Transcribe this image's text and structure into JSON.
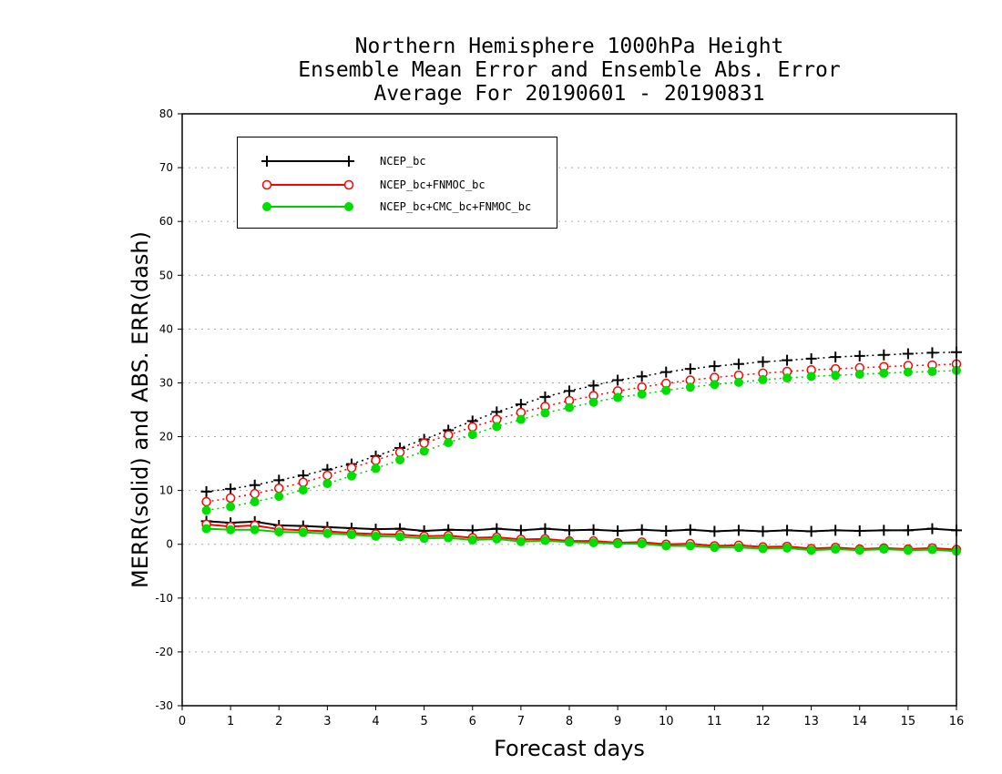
{
  "chart_data": {
    "type": "line",
    "title": [
      "Northern Hemisphere 1000hPa Height",
      "Ensemble Mean Error and Ensemble Abs. Error",
      "Average For 20190601 - 20190831"
    ],
    "xlabel": "Forecast days",
    "ylabel": "MERR(solid) and ABS. ERR(dash)",
    "xlim": [
      0,
      16
    ],
    "ylim": [
      -30,
      80
    ],
    "xticks": [
      "0",
      "1",
      "2",
      "3",
      "4",
      "5",
      "6",
      "7",
      "8",
      "9",
      "10",
      "11",
      "12",
      "13",
      "14",
      "15",
      "16"
    ],
    "yticks": [
      "-30",
      "-20",
      "-10",
      "0",
      "10",
      "20",
      "30",
      "40",
      "50",
      "60",
      "70",
      "80"
    ],
    "grid": "horizontal dotted",
    "legend_position": "top-left",
    "x": [
      0.5,
      1,
      1.5,
      2,
      2.5,
      3,
      3.5,
      4,
      4.5,
      5,
      5.5,
      6,
      6.5,
      7,
      7.5,
      8,
      8.5,
      9,
      9.5,
      10,
      10.5,
      11,
      11.5,
      12,
      12.5,
      13,
      13.5,
      14,
      14.5,
      15,
      15.5,
      16
    ],
    "series": [
      {
        "name": "NCEP_bc",
        "color": "#000000",
        "marker": "plus",
        "merr": [
          4.3,
          4.0,
          4.2,
          3.5,
          3.4,
          3.2,
          3.0,
          2.8,
          2.9,
          2.5,
          2.7,
          2.6,
          2.9,
          2.6,
          2.9,
          2.6,
          2.7,
          2.5,
          2.7,
          2.5,
          2.7,
          2.4,
          2.6,
          2.4,
          2.6,
          2.4,
          2.6,
          2.5,
          2.6,
          2.6,
          2.9,
          2.6
        ],
        "abs_err": [
          9.8,
          10.3,
          11.0,
          11.9,
          12.8,
          13.9,
          14.9,
          16.4,
          17.9,
          19.5,
          21.2,
          22.9,
          24.6,
          26.0,
          27.4,
          28.5,
          29.5,
          30.5,
          31.2,
          32.0,
          32.6,
          33.1,
          33.5,
          33.9,
          34.2,
          34.5,
          34.8,
          35.0,
          35.2,
          35.4,
          35.6,
          35.7
        ]
      },
      {
        "name": "NCEP_bc+FNMOC_bc",
        "color": "#ff0000",
        "marker": "open-circle",
        "merr": [
          3.7,
          3.3,
          3.5,
          2.8,
          2.6,
          2.4,
          2.1,
          1.9,
          1.8,
          1.5,
          1.6,
          1.2,
          1.3,
          0.9,
          1.0,
          0.6,
          0.6,
          0.3,
          0.4,
          0.0,
          0.1,
          -0.3,
          -0.2,
          -0.5,
          -0.4,
          -0.8,
          -0.6,
          -0.9,
          -0.7,
          -0.9,
          -0.7,
          -1.0
        ],
        "abs_err": [
          7.9,
          8.6,
          9.4,
          10.4,
          11.5,
          12.8,
          14.2,
          15.6,
          17.1,
          18.8,
          20.3,
          21.8,
          23.2,
          24.5,
          25.6,
          26.7,
          27.6,
          28.5,
          29.2,
          29.9,
          30.5,
          31.0,
          31.4,
          31.8,
          32.1,
          32.4,
          32.6,
          32.8,
          33.0,
          33.2,
          33.3,
          33.5
        ]
      },
      {
        "name": "NCEP_bc+CMC_bc+FNMOC_bc",
        "color": "#00cc00",
        "marker": "filled-circle",
        "merr": [
          2.9,
          2.7,
          2.7,
          2.3,
          2.2,
          2.0,
          1.8,
          1.5,
          1.4,
          1.1,
          1.2,
          0.8,
          1.0,
          0.5,
          0.7,
          0.4,
          0.3,
          0.1,
          0.1,
          -0.3,
          -0.3,
          -0.6,
          -0.6,
          -0.8,
          -0.7,
          -1.1,
          -0.9,
          -1.1,
          -0.9,
          -1.1,
          -1.0,
          -1.3
        ],
        "abs_err": [
          6.3,
          7.0,
          7.9,
          8.9,
          10.1,
          11.3,
          12.7,
          14.1,
          15.7,
          17.3,
          18.9,
          20.4,
          21.9,
          23.2,
          24.4,
          25.4,
          26.4,
          27.3,
          27.9,
          28.6,
          29.2,
          29.7,
          30.1,
          30.6,
          30.9,
          31.2,
          31.4,
          31.6,
          31.8,
          32.0,
          32.1,
          32.3
        ]
      }
    ]
  }
}
